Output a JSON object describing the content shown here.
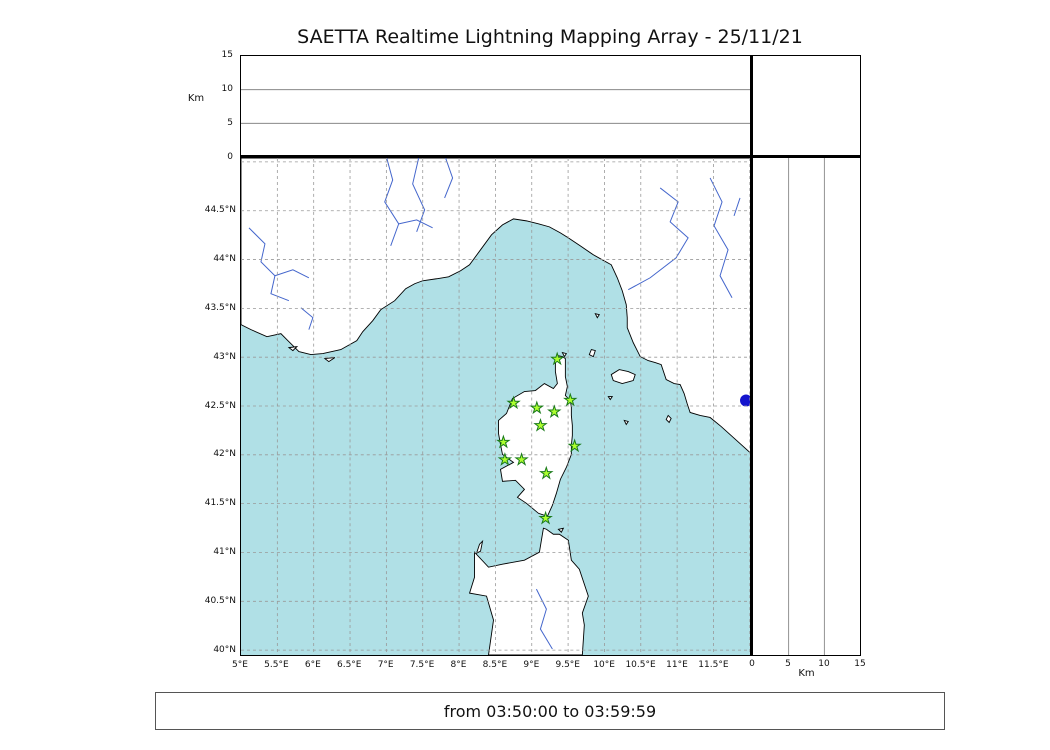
{
  "title": "SAETTA Realtime Lightning Mapping Array - 25/11/21",
  "footer": {
    "text": "from 03:50:00 to 03:59:59"
  },
  "axes": {
    "alt_label_top": "Km",
    "alt_label_right": "Km",
    "alt_tick_labels": [
      "0",
      "5",
      "10",
      "15"
    ],
    "lon_tick_labels": [
      "5°E",
      "5.5°E",
      "6°E",
      "6.5°E",
      "7°E",
      "7.5°E",
      "8°E",
      "8.5°E",
      "9°E",
      "9.5°E",
      "10°E",
      "10.5°E",
      "11°E",
      "11.5°E"
    ],
    "lat_tick_labels": [
      "40°N",
      "40.5°N",
      "41°N",
      "41.5°N",
      "42°N",
      "42.5°N",
      "43°N",
      "43.5°N",
      "44°N",
      "44.5°N"
    ]
  },
  "chart_data": {
    "type": "scatter",
    "title": "SAETTA Realtime Lightning Mapping Array - 25/11/21",
    "date": "25/11/21",
    "time_window": "from 03:50:00 to 03:59:59",
    "panels": {
      "top_altitude": {
        "axis_label": "Km",
        "range_km": [
          0,
          15
        ],
        "ticks_km": [
          0,
          5,
          10,
          15
        ],
        "gridlines_km": [
          5,
          10
        ],
        "paired_axis": "longitude"
      },
      "main_map": {
        "lon_range_e": [
          5.0,
          12.03
        ],
        "lat_range_n": [
          39.95,
          45.04
        ],
        "lon_ticks_e": [
          5,
          5.5,
          6,
          6.5,
          7,
          7.5,
          8,
          8.5,
          9,
          9.5,
          10,
          10.5,
          11,
          11.5
        ],
        "lat_ticks_n": [
          40,
          40.5,
          41,
          41.5,
          42,
          42.5,
          43,
          43.5,
          44,
          44.5
        ],
        "lon_gridlines_e": [
          5.5,
          6,
          6.5,
          7,
          7.5,
          8,
          8.5,
          9,
          9.5,
          10,
          10.5,
          11,
          11.5,
          12
        ],
        "lat_gridlines_n": [
          40,
          40.5,
          41,
          41.5,
          42,
          42.5,
          43,
          43.5,
          44,
          44.5,
          45
        ],
        "region": "NW Mediterranean: S France, NW Italy coast, Corsica, N Sardinia"
      },
      "right_altitude": {
        "axis_label": "Km",
        "range_km": [
          0,
          15
        ],
        "ticks_km": [
          0,
          5,
          10,
          15
        ],
        "gridlines_km": [
          5,
          10
        ],
        "paired_axis": "latitude"
      }
    },
    "stations_lon_lat": [
      [
        9.35,
        42.98
      ],
      [
        8.75,
        42.53
      ],
      [
        9.07,
        42.48
      ],
      [
        9.31,
        42.44
      ],
      [
        9.53,
        42.56
      ],
      [
        9.12,
        42.3
      ],
      [
        8.61,
        42.13
      ],
      [
        9.59,
        42.09
      ],
      [
        8.63,
        41.95
      ],
      [
        8.86,
        41.95
      ],
      [
        9.2,
        41.81
      ],
      [
        9.19,
        41.35
      ]
    ],
    "lightning_sources": [],
    "colors": {
      "sea": "#b0e0e6",
      "land": "#ffffff",
      "coastline": "#000000",
      "river": "#4466cc",
      "lake": "#1414cd",
      "grid": "#999999",
      "panel_grid": "#777777",
      "station_fill": "#adff2f",
      "station_edge": "#1a7a1a",
      "frame": "#000000"
    }
  }
}
